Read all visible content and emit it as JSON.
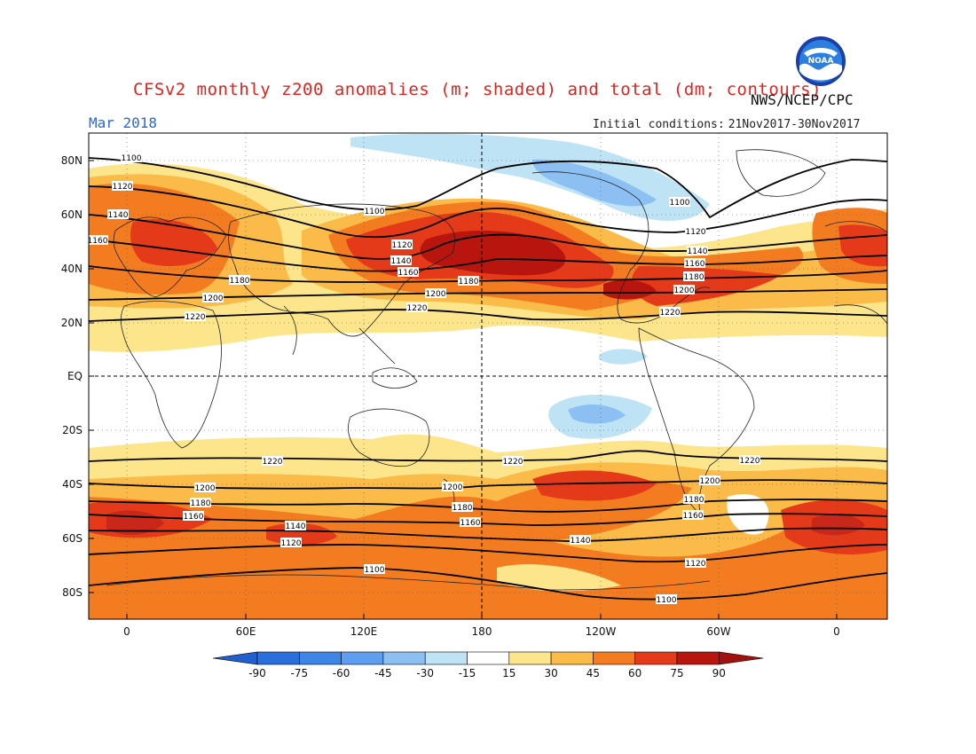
{
  "header": {
    "title": "CFSv2 monthly z200 anomalies (m; shaded) and total (dm; contours)",
    "org": "NWS/NCEP/CPC",
    "date": "Mar 2018",
    "ic_label": "Initial conditions:",
    "ic_value": "21Nov2017-30Nov2017"
  },
  "logo": {
    "icon": "noaa-logo",
    "text": "NOAA"
  },
  "map": {
    "lat_labels": [
      "80N",
      "60N",
      "40N",
      "20N",
      "EQ",
      "20S",
      "40S",
      "60S",
      "80S"
    ],
    "lon_labels": [
      "0",
      "60E",
      "120E",
      "180",
      "120W",
      "60W",
      "0"
    ]
  },
  "colorbar": {
    "labels": [
      "-90",
      "-75",
      "-60",
      "-45",
      "-30",
      "-15",
      "15",
      "30",
      "45",
      "60",
      "75",
      "90"
    ],
    "colors": [
      "#2a6fdb",
      "#3d86e8",
      "#5d9ef0",
      "#8cc0f3",
      "#bde3f5",
      "#ffffff",
      "#ffffff",
      "#fde58c",
      "#fbbb48",
      "#f47c20",
      "#e43a1a",
      "#b8150f"
    ]
  },
  "contours": [
    {
      "label": "1100"
    },
    {
      "label": "1120"
    },
    {
      "label": "1140"
    },
    {
      "label": "1160"
    },
    {
      "label": "1180"
    },
    {
      "label": "1200"
    },
    {
      "label": "1220"
    }
  ]
}
